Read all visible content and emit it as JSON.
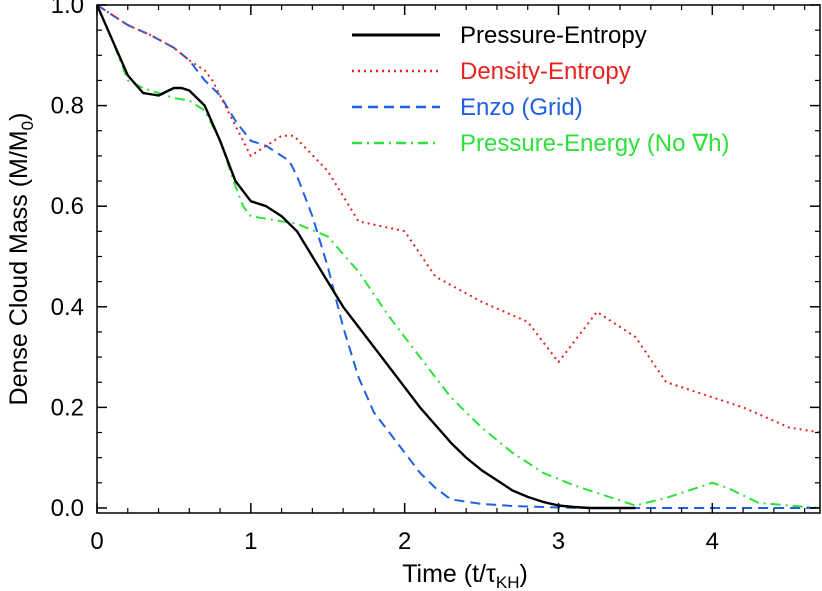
{
  "chart_data": {
    "type": "line",
    "title": "",
    "xlabel": "Time  (t/τ",
    "xlabel_sub": "KH",
    "xlabel_close": ")",
    "ylabel": "Dense Cloud Mass  (M/M",
    "ylabel_sub": "0",
    "ylabel_close": ")",
    "xlim": [
      0,
      4.7
    ],
    "ylim": [
      -0.01,
      1.0
    ],
    "x_ticks": [
      0,
      1,
      2,
      3,
      4
    ],
    "x_tick_labels": [
      "0",
      "1",
      "2",
      "3",
      "4"
    ],
    "y_ticks": [
      0.0,
      0.2,
      0.4,
      0.6,
      0.8,
      1.0
    ],
    "y_tick_labels": [
      "0.0",
      "0.2",
      "0.4",
      "0.6",
      "0.8",
      "1.0"
    ],
    "legend_position": "top-right",
    "series": [
      {
        "name": "Pressure-Entropy",
        "color": "#000000",
        "dash": "solid",
        "x": [
          0,
          0.1,
          0.2,
          0.3,
          0.4,
          0.5,
          0.55,
          0.6,
          0.7,
          0.8,
          0.9,
          1.0,
          1.1,
          1.2,
          1.3,
          1.4,
          1.5,
          1.6,
          1.7,
          1.8,
          1.9,
          2.0,
          2.1,
          2.2,
          2.3,
          2.4,
          2.5,
          2.6,
          2.7,
          2.8,
          2.9,
          3.0,
          3.1,
          3.2,
          3.3,
          3.4,
          3.5
        ],
        "y": [
          1.0,
          0.93,
          0.86,
          0.825,
          0.82,
          0.835,
          0.835,
          0.83,
          0.8,
          0.73,
          0.65,
          0.61,
          0.6,
          0.58,
          0.55,
          0.5,
          0.45,
          0.4,
          0.36,
          0.32,
          0.28,
          0.24,
          0.2,
          0.165,
          0.13,
          0.1,
          0.075,
          0.055,
          0.035,
          0.022,
          0.012,
          0.005,
          0.002,
          0.0,
          0.0,
          0.0,
          0.0
        ]
      },
      {
        "name": "Density-Entropy",
        "color": "#e8221f",
        "dash": "dotted",
        "x": [
          0,
          0.2,
          0.35,
          0.5,
          0.6,
          0.7,
          0.75,
          0.8,
          0.9,
          1.0,
          1.1,
          1.2,
          1.28,
          1.5,
          1.7,
          1.85,
          2.0,
          2.2,
          2.5,
          2.8,
          3.0,
          3.2,
          3.25,
          3.5,
          3.7,
          4.0,
          4.2,
          4.5,
          4.7
        ],
        "y": [
          1.0,
          0.96,
          0.94,
          0.915,
          0.89,
          0.87,
          0.85,
          0.82,
          0.76,
          0.7,
          0.72,
          0.74,
          0.74,
          0.67,
          0.57,
          0.56,
          0.55,
          0.46,
          0.41,
          0.37,
          0.29,
          0.37,
          0.39,
          0.34,
          0.25,
          0.22,
          0.2,
          0.16,
          0.15
        ]
      },
      {
        "name": "Enzo (Grid)",
        "color": "#1f5fe0",
        "dash": "dashed",
        "x": [
          0,
          0.2,
          0.35,
          0.5,
          0.6,
          0.7,
          0.8,
          0.9,
          1.0,
          1.1,
          1.25,
          1.3,
          1.4,
          1.5,
          1.6,
          1.7,
          1.8,
          1.9,
          2.0,
          2.1,
          2.2,
          2.3,
          2.5,
          2.7,
          3.0,
          3.3,
          3.6,
          4.0,
          4.7
        ],
        "y": [
          1.0,
          0.96,
          0.94,
          0.915,
          0.89,
          0.85,
          0.82,
          0.77,
          0.73,
          0.72,
          0.69,
          0.66,
          0.58,
          0.48,
          0.36,
          0.26,
          0.19,
          0.15,
          0.11,
          0.07,
          0.04,
          0.017,
          0.008,
          0.004,
          0.001,
          0.0,
          0.0,
          0.0,
          0.0
        ]
      },
      {
        "name": "Pressure-Energy (No ∇h)",
        "color": "#2ee03a",
        "dash": "dashdot",
        "x": [
          0,
          0.1,
          0.2,
          0.3,
          0.4,
          0.5,
          0.6,
          0.7,
          0.8,
          0.9,
          0.95,
          1.0,
          1.2,
          1.3,
          1.5,
          1.7,
          1.9,
          2.1,
          2.3,
          2.5,
          2.7,
          2.9,
          3.1,
          3.3,
          3.5,
          3.7,
          4.0,
          4.1,
          4.3,
          4.5,
          4.7
        ],
        "y": [
          1.0,
          0.93,
          0.85,
          0.835,
          0.825,
          0.815,
          0.81,
          0.79,
          0.73,
          0.64,
          0.6,
          0.58,
          0.57,
          0.565,
          0.54,
          0.47,
          0.38,
          0.3,
          0.22,
          0.16,
          0.11,
          0.07,
          0.045,
          0.025,
          0.005,
          0.02,
          0.05,
          0.04,
          0.01,
          0.005,
          0.0
        ]
      }
    ]
  }
}
